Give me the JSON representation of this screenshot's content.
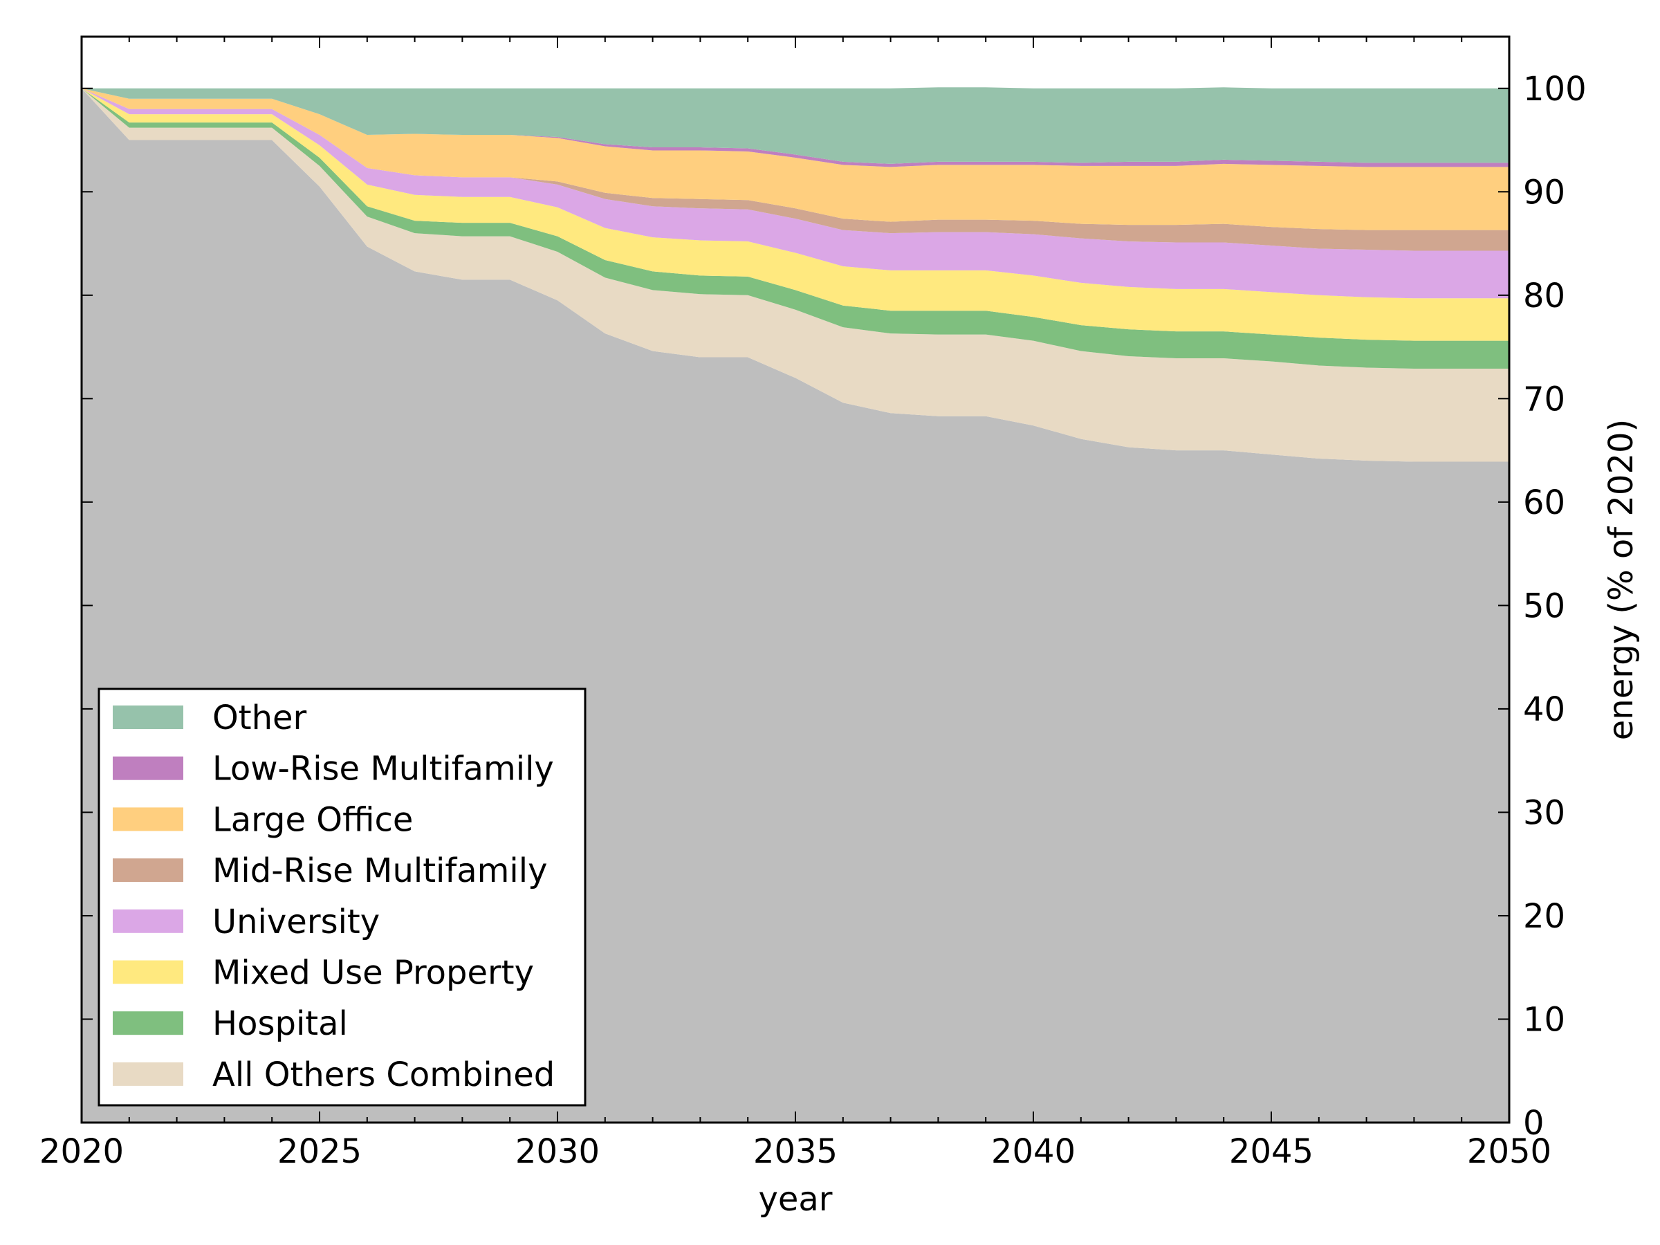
{
  "chart_data": {
    "type": "area",
    "stacked": true,
    "title": "",
    "xlabel": "year",
    "ylabel": "energy (% of 2020)",
    "xlim": [
      2020,
      2050
    ],
    "ylim": [
      0,
      105
    ],
    "y_axis_side": "right",
    "grid": false,
    "legend_position": "lower-left",
    "x_ticks": [
      2020,
      2025,
      2030,
      2035,
      2040,
      2045,
      2050
    ],
    "x_tick_labels": [
      "2020",
      "2025",
      "2030",
      "2035",
      "2040",
      "2045",
      "2050"
    ],
    "y_ticks": [
      0,
      10,
      20,
      30,
      40,
      50,
      60,
      70,
      80,
      90,
      100
    ],
    "y_tick_labels": [
      "0",
      "10",
      "20",
      "30",
      "40",
      "50",
      "60",
      "70",
      "80",
      "90",
      "100"
    ],
    "x": [
      2020,
      2021,
      2022,
      2023,
      2024,
      2025,
      2026,
      2027,
      2028,
      2029,
      2030,
      2031,
      2032,
      2033,
      2034,
      2035,
      2036,
      2037,
      2038,
      2039,
      2040,
      2041,
      2042,
      2043,
      2044,
      2045,
      2046,
      2047,
      2048,
      2049,
      2050
    ],
    "base_series": {
      "color": "#bebebe",
      "values": [
        100,
        95,
        95,
        95,
        95,
        90.5,
        84.7,
        82.3,
        81.5,
        81.5,
        79.5,
        76.3,
        74.6,
        74.0,
        74.0,
        72.0,
        69.6,
        68.6,
        68.3,
        68.3,
        67.4,
        66.1,
        65.3,
        65.0,
        65.0,
        64.6,
        64.2,
        64.0,
        63.9,
        63.9,
        63.9
      ]
    },
    "series": [
      {
        "name": "All Others Combined",
        "color": "#e8dac4",
        "values": [
          0,
          1.2,
          1.2,
          1.2,
          1.2,
          2.0,
          2.9,
          3.7,
          4.2,
          4.2,
          4.7,
          5.4,
          5.9,
          6.1,
          6.0,
          6.6,
          7.3,
          7.7,
          7.9,
          7.9,
          8.2,
          8.5,
          8.8,
          8.9,
          8.9,
          9.0,
          9.0,
          9.0,
          9.0,
          9.0,
          9.0
        ]
      },
      {
        "name": "Hospital",
        "color": "#7fbf7f",
        "values": [
          0,
          0.5,
          0.5,
          0.5,
          0.5,
          0.8,
          1.0,
          1.2,
          1.3,
          1.3,
          1.5,
          1.7,
          1.8,
          1.8,
          1.8,
          1.9,
          2.1,
          2.2,
          2.3,
          2.3,
          2.3,
          2.5,
          2.6,
          2.6,
          2.6,
          2.6,
          2.7,
          2.7,
          2.7,
          2.7,
          2.7
        ]
      },
      {
        "name": "Mixed Use Property",
        "color": "#ffe97f",
        "values": [
          0,
          0.8,
          0.8,
          0.8,
          0.8,
          1.2,
          2.1,
          2.5,
          2.5,
          2.5,
          2.8,
          3.1,
          3.3,
          3.4,
          3.4,
          3.6,
          3.8,
          3.9,
          3.9,
          3.9,
          4.0,
          4.1,
          4.1,
          4.1,
          4.1,
          4.1,
          4.1,
          4.1,
          4.1,
          4.1,
          4.1
        ]
      },
      {
        "name": "University",
        "color": "#dba7e6",
        "values": [
          0,
          0.5,
          0.5,
          0.5,
          0.5,
          1.0,
          1.6,
          1.9,
          1.9,
          1.9,
          2.2,
          2.8,
          3.0,
          3.1,
          3.1,
          3.3,
          3.5,
          3.6,
          3.7,
          3.7,
          4.0,
          4.3,
          4.4,
          4.5,
          4.5,
          4.5,
          4.5,
          4.6,
          4.6,
          4.6,
          4.6
        ]
      },
      {
        "name": "Mid-Rise Multifamily",
        "color": "#d0a690",
        "values": [
          0,
          0,
          0,
          0,
          0,
          0,
          0,
          0,
          0,
          0,
          0.3,
          0.6,
          0.8,
          0.9,
          0.9,
          1.0,
          1.1,
          1.1,
          1.2,
          1.2,
          1.3,
          1.4,
          1.6,
          1.7,
          1.8,
          1.8,
          1.9,
          1.9,
          2.0,
          2.0,
          2.0
        ]
      },
      {
        "name": "Large Office",
        "color": "#ffcf7f",
        "values": [
          0,
          1.0,
          1.0,
          1.0,
          1.0,
          2.0,
          3.2,
          4.0,
          4.1,
          4.1,
          4.2,
          4.5,
          4.6,
          4.7,
          4.7,
          4.9,
          5.2,
          5.3,
          5.3,
          5.3,
          5.4,
          5.6,
          5.7,
          5.7,
          5.8,
          6.0,
          6.1,
          6.1,
          6.1,
          6.1,
          6.1
        ]
      },
      {
        "name": "Low-Rise Multifamily",
        "color": "#bf7fbf",
        "values": [
          0,
          0,
          0,
          0,
          0,
          0,
          0,
          0,
          0,
          0,
          0.1,
          0.2,
          0.3,
          0.3,
          0.3,
          0.3,
          0.3,
          0.3,
          0.3,
          0.3,
          0.3,
          0.3,
          0.4,
          0.4,
          0.4,
          0.4,
          0.4,
          0.4,
          0.4,
          0.4,
          0.4
        ]
      },
      {
        "name": "Other",
        "color": "#96c2ab",
        "values": [
          0,
          1.0,
          1.0,
          1.0,
          1.0,
          2.5,
          4.5,
          4.4,
          4.5,
          4.5,
          4.7,
          5.4,
          5.7,
          5.7,
          5.8,
          6.4,
          7.1,
          7.3,
          7.2,
          7.2,
          7.1,
          7.2,
          7.1,
          7.1,
          7.0,
          7.0,
          7.1,
          7.2,
          7.2,
          7.2,
          7.2
        ]
      }
    ],
    "legend_order": [
      "Other",
      "Low-Rise Multifamily",
      "Large Office",
      "Mid-Rise Multifamily",
      "University",
      "Mixed Use Property",
      "Hospital",
      "All Others Combined"
    ]
  }
}
